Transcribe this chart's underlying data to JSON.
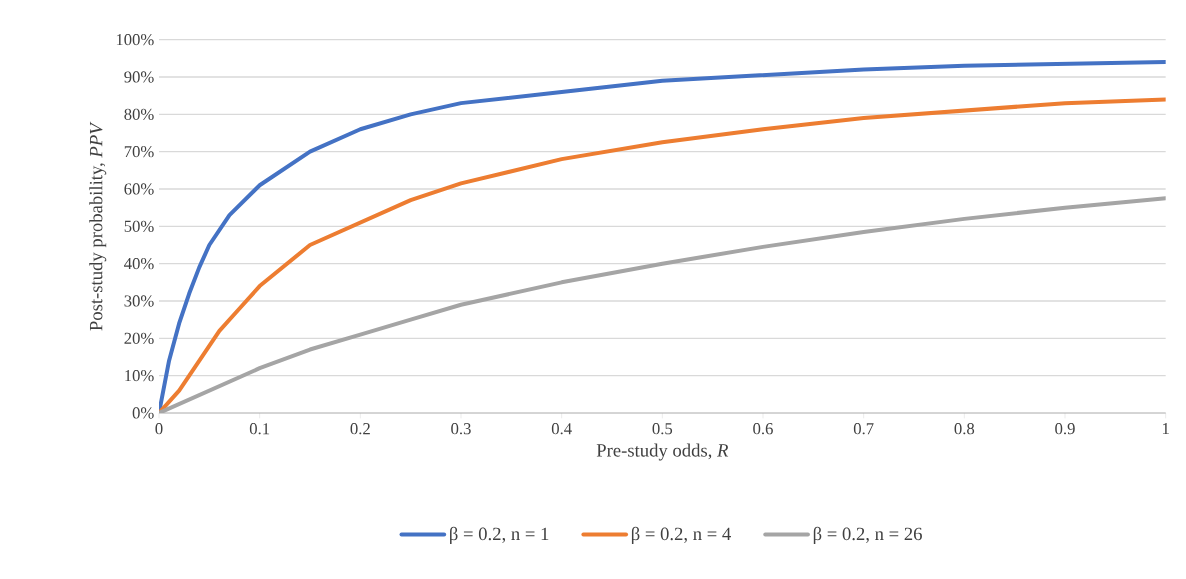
{
  "chart_data": {
    "type": "line",
    "xlabel": "Pre-study odds, *R*",
    "ylabel": "Post-study probability, *PPV*",
    "xlim": [
      0,
      1
    ],
    "ylim": [
      0,
      100
    ],
    "xticks": [
      0,
      0.1,
      0.2,
      0.3,
      0.4,
      0.5,
      0.6,
      0.7,
      0.8,
      0.9,
      1
    ],
    "yticks": [
      {
        "value": 0,
        "label": "0%"
      },
      {
        "value": 10,
        "label": "10%"
      },
      {
        "value": 20,
        "label": "20%"
      },
      {
        "value": 30,
        "label": "30%"
      },
      {
        "value": 40,
        "label": "40%"
      },
      {
        "value": 50,
        "label": "50%"
      },
      {
        "value": 60,
        "label": "60%"
      },
      {
        "value": 70,
        "label": "70%"
      },
      {
        "value": 80,
        "label": "80%"
      },
      {
        "value": 90,
        "label": "90%"
      },
      {
        "value": 100,
        "label": "100%"
      }
    ],
    "grid": "y",
    "legend": "bottom",
    "marker": "none",
    "line_style": "solid",
    "series": [
      {
        "name": "β = 0.2, n = 1",
        "color": "#4472c4",
        "x": [
          0,
          0.01,
          0.02,
          0.03,
          0.04,
          0.05,
          0.07,
          0.1,
          0.15,
          0.2,
          0.25,
          0.3,
          0.4,
          0.5,
          0.6,
          0.7,
          0.8,
          0.9,
          1
        ],
        "values": [
          0,
          14,
          24,
          32,
          39,
          45,
          53,
          61,
          70,
          76,
          80,
          83,
          86,
          89,
          90.5,
          92,
          93,
          93.5,
          94
        ]
      },
      {
        "name": "β = 0.2, n = 4",
        "color": "#ed7d31",
        "x": [
          0,
          0.02,
          0.04,
          0.06,
          0.08,
          0.1,
          0.15,
          0.2,
          0.25,
          0.3,
          0.4,
          0.5,
          0.6,
          0.7,
          0.8,
          0.9,
          1
        ],
        "values": [
          0,
          6,
          14,
          22,
          28,
          34,
          45,
          51,
          57,
          61.5,
          68,
          72.5,
          76,
          79,
          81,
          83,
          84
        ]
      },
      {
        "name": "β = 0.2, n = 26",
        "color": "#a5a5a5",
        "x": [
          0,
          0.05,
          0.1,
          0.15,
          0.2,
          0.25,
          0.3,
          0.4,
          0.5,
          0.6,
          0.7,
          0.8,
          0.9,
          1
        ],
        "values": [
          0,
          6,
          12,
          17,
          21,
          25,
          29,
          35,
          40,
          44.5,
          48.5,
          52,
          55,
          57.5
        ]
      }
    ]
  }
}
